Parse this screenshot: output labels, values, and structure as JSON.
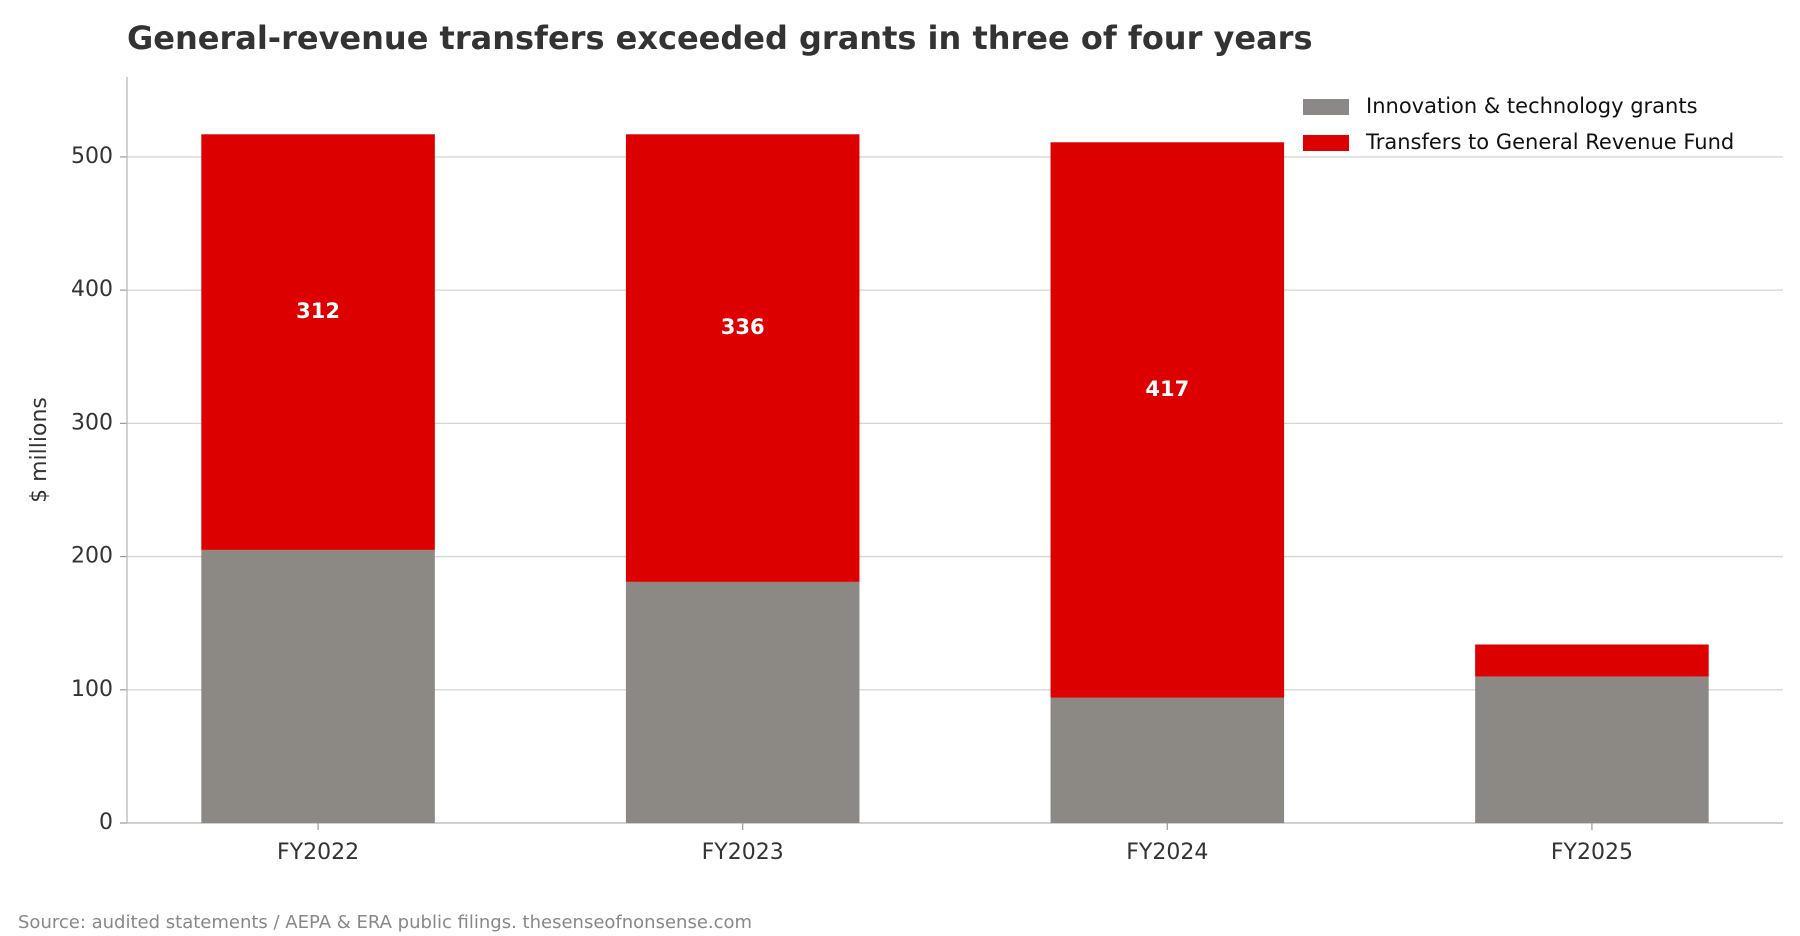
{
  "chart_data": {
    "type": "stacked_bar",
    "title": "General-revenue transfers exceeded grants in three of four years",
    "y_label": "$ millions",
    "source": "Source: audited statements / AEPA & ERA public filings. thesenseofnonsense.com",
    "categories": [
      "FY2022",
      "FY2023",
      "FY2024",
      "FY2025"
    ],
    "series": [
      {
        "name": "Innovation & technology grants",
        "color": "#8c8984",
        "values": [
          205,
          181,
          94,
          110
        ]
      },
      {
        "name": "Transfers to General Revenue Fund",
        "color": "#dd0000",
        "values": [
          312,
          336,
          417,
          24
        ]
      }
    ],
    "ylim": [
      0,
      560
    ],
    "yticks": [
      0,
      100,
      200,
      300,
      400,
      500
    ],
    "grid": true,
    "legend": "upper right"
  }
}
